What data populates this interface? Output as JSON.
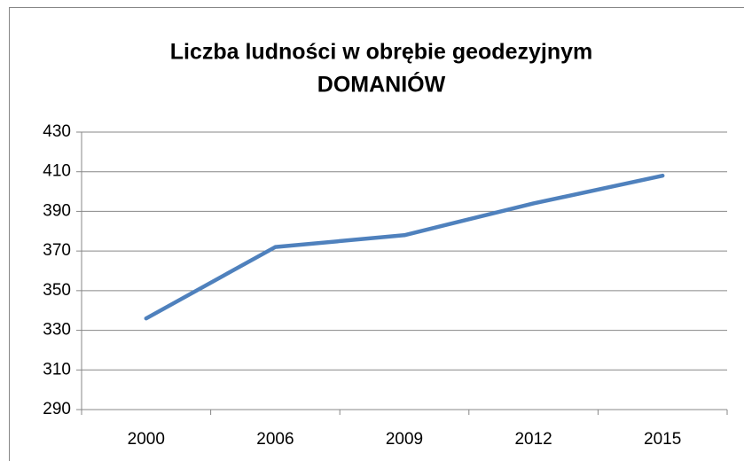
{
  "chart_data": {
    "type": "line",
    "title": [
      "Liczba ludności w obrębie geodezyjnym",
      "DOMANIÓW"
    ],
    "categories": [
      "2000",
      "2006",
      "2009",
      "2012",
      "2015"
    ],
    "series": [
      {
        "name": "Liczba ludności",
        "color": "#4f81bd",
        "values": [
          336,
          372,
          378,
          394,
          408
        ]
      }
    ],
    "ylim": [
      290,
      430
    ],
    "yticks": [
      290,
      310,
      330,
      350,
      370,
      390,
      410,
      430
    ],
    "grid": true
  }
}
